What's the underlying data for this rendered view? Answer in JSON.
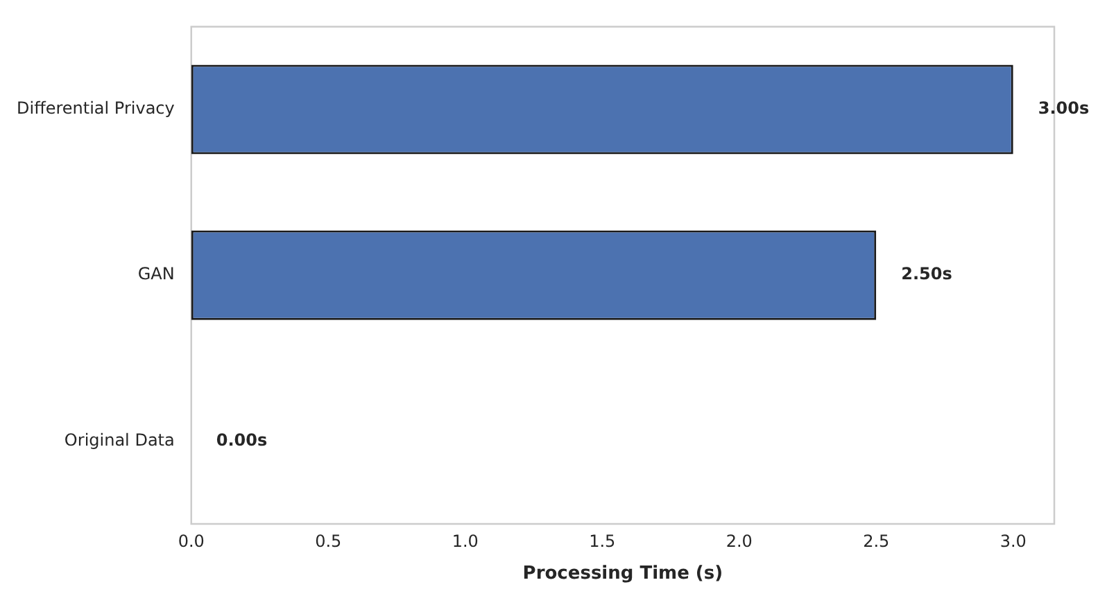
{
  "chart_data": {
    "type": "bar",
    "orientation": "horizontal",
    "categories": [
      "Differential Privacy",
      "GAN",
      "Original Data"
    ],
    "values": [
      3.0,
      2.5,
      0.0
    ],
    "color": "#4c72b0",
    "value_labels": [
      "3.00s",
      "2.50s",
      "0.00s"
    ],
    "xlabel": "Processing Time (s)",
    "xlim": [
      0,
      3.15
    ],
    "xticks": [
      {
        "value": 0,
        "label": "0.0"
      },
      {
        "value": 0.5,
        "label": "0.5"
      },
      {
        "value": 1,
        "label": "1.0"
      },
      {
        "value": 1.5,
        "label": "1.5"
      },
      {
        "value": 2,
        "label": "2.0"
      },
      {
        "value": 2.5,
        "label": "2.5"
      },
      {
        "value": 3,
        "label": "3.0"
      }
    ],
    "grid": false,
    "legend": false
  }
}
